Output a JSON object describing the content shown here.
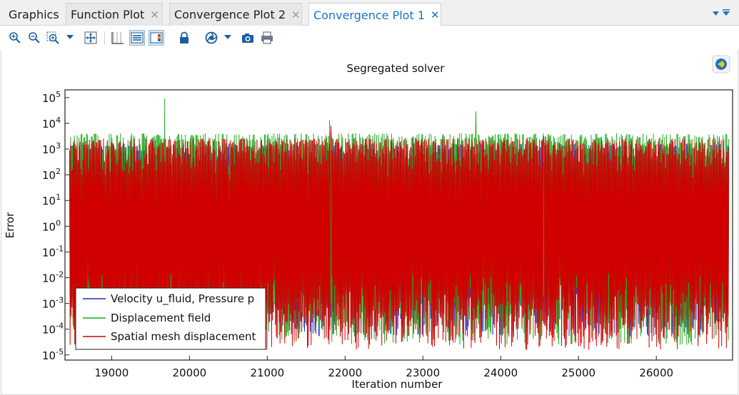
{
  "tabs": [
    {
      "label": "Graphics",
      "closable": false,
      "active": false
    },
    {
      "label": "Function Plot",
      "closable": true,
      "active": false
    },
    {
      "label": "Convergence Plot 2",
      "closable": true,
      "active": false
    },
    {
      "label": "Convergence Plot 1",
      "closable": true,
      "active": true
    }
  ],
  "tab_close_glyph": "✕",
  "icons": {
    "zoom_in": "zoom-in-icon",
    "zoom_out": "zoom-out-icon",
    "zoom_box": "zoom-box-icon",
    "zoom_extents": "zoom-extents-icon",
    "grid": "grid-icon",
    "legend": "legend-icon",
    "colorbar": "color-bar-icon",
    "lock": "lock-icon",
    "scene_light": "scene-light-icon",
    "camera": "camera-icon",
    "print": "print-icon",
    "corner": "comsol-logo-icon"
  },
  "colors": {
    "accent": "#1a73c8",
    "velocity": "#1f2fbf",
    "displacement": "#1faa1f",
    "spatial": "#d00000"
  },
  "chart_data": {
    "type": "line",
    "title": "Segregated solver",
    "xlabel": "Iteration number",
    "ylabel": "Error",
    "yscale": "log",
    "xlim": [
      18400,
      26980
    ],
    "ylim_exponent": [
      -5.2,
      5.3
    ],
    "x_ticks": [
      19000,
      20000,
      21000,
      22000,
      23000,
      24000,
      25000,
      26000
    ],
    "y_ticks": [
      {
        "base": "10",
        "exp": "5"
      },
      {
        "base": "10",
        "exp": "4"
      },
      {
        "base": "10",
        "exp": "3"
      },
      {
        "base": "10",
        "exp": "2"
      },
      {
        "base": "10",
        "exp": "1"
      },
      {
        "base": "10",
        "exp": "0"
      },
      {
        "base": "10",
        "exp": "-1"
      },
      {
        "base": "10",
        "exp": "-2"
      },
      {
        "base": "10",
        "exp": "-3"
      },
      {
        "base": "10",
        "exp": "-4"
      },
      {
        "base": "10",
        "exp": "-5"
      }
    ],
    "y_tick_exponents": [
      5,
      4,
      3,
      2,
      1,
      0,
      -1,
      -2,
      -3,
      -4,
      -5
    ],
    "legend_position": "bottom-left",
    "grid": false,
    "series": [
      {
        "name": "Velocity u_fluid, Pressure p",
        "color": "#1f2fbf",
        "exp_range": [
          -4.3,
          3.2
        ],
        "peaks": []
      },
      {
        "name": "Displacement field",
        "color": "#1faa1f",
        "exp_range": [
          -4.6,
          3.6
        ],
        "peaks": [
          {
            "x": 19680,
            "exp": 4.95
          },
          {
            "x": 23680,
            "exp": 4.45
          },
          {
            "x": 21800,
            "exp": 4.1
          }
        ]
      },
      {
        "name": "Spatial mesh displacement",
        "color": "#d00000",
        "exp_range": [
          -4.8,
          3.4
        ],
        "peaks": [
          {
            "x": 21820,
            "exp": 3.9
          },
          {
            "x": 24550,
            "exp": 3.5
          }
        ]
      }
    ]
  }
}
